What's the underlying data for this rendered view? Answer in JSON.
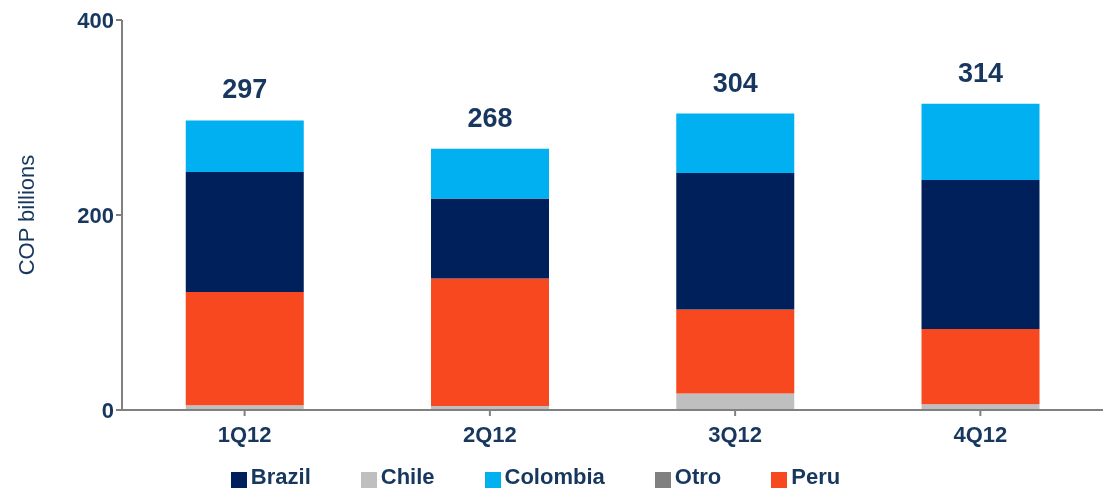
{
  "chart_data": {
    "type": "bar",
    "stacked": true,
    "ylabel": "COP billions",
    "categories": [
      "1Q12",
      "2Q12",
      "3Q12",
      "4Q12"
    ],
    "series": [
      {
        "name": "Otro",
        "color": "#808080",
        "values": [
          0,
          0,
          0,
          0
        ]
      },
      {
        "name": "Chile",
        "color": "#bfbfbf",
        "values": [
          5,
          4,
          17,
          6
        ]
      },
      {
        "name": "Peru",
        "color": "#f8481f",
        "values": [
          116,
          131,
          86,
          77
        ]
      },
      {
        "name": "Brazil",
        "color": "#00205b",
        "values": [
          123,
          82,
          140,
          153
        ]
      },
      {
        "name": "Colombia",
        "color": "#00b0f0",
        "values": [
          53,
          51,
          61,
          78
        ]
      }
    ],
    "totals": [
      "297",
      "268",
      "304",
      "314"
    ],
    "ylim": [
      0,
      400
    ],
    "yticks": [
      0,
      200,
      400
    ],
    "grid": false,
    "legend": "bottom"
  }
}
